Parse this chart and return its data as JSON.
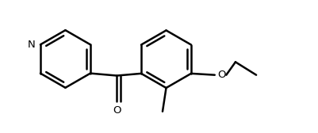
{
  "bg_color": "#ffffff",
  "line_color": "#000000",
  "line_width": 1.8,
  "dbo": 0.055,
  "fig_width": 4.01,
  "fig_height": 1.68,
  "dpi": 100,
  "r": 0.4,
  "xlim": [
    -1.85,
    2.55
  ],
  "ylim": [
    -0.75,
    0.9
  ]
}
